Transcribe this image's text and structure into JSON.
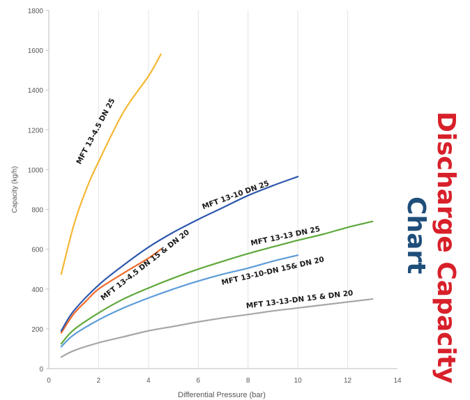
{
  "side_title": {
    "line1": "Discharge Capacity",
    "line2": "Chart",
    "line1_color": "#d8202a",
    "line2_color": "#1f4e7a"
  },
  "chart_data": {
    "type": "line",
    "xlabel": "Differential Pressure (bar)",
    "ylabel": "Capacity (kg/h)",
    "xlim": [
      0,
      14
    ],
    "ylim": [
      0,
      1800
    ],
    "x_ticks": [
      "0",
      "2",
      "4",
      "6",
      "8",
      "10",
      "12",
      "14"
    ],
    "y_ticks": [
      "0",
      "200",
      "400",
      "600",
      "800",
      "1000",
      "1200",
      "1400",
      "1600",
      "1800"
    ],
    "grid": "vertical",
    "series": [
      {
        "name": "MFT 13-4.5 DN 25",
        "color": "#f5b731",
        "points": [
          [
            0.5,
            475
          ],
          [
            1,
            720
          ],
          [
            1.5,
            900
          ],
          [
            2,
            1040
          ],
          [
            3,
            1290
          ],
          [
            4,
            1470
          ],
          [
            4.5,
            1580
          ]
        ]
      },
      {
        "name": "MFT 13-4.5 DN 15 & DN 20",
        "color": "#ee6a27",
        "points": [
          [
            0.5,
            180
          ],
          [
            1,
            275
          ],
          [
            1.5,
            340
          ],
          [
            2,
            400
          ],
          [
            3,
            480
          ],
          [
            4,
            555
          ],
          [
            4.5,
            600
          ]
        ]
      },
      {
        "name": "MFT 13-10 DN 25",
        "color": "#2e58ad",
        "points": [
          [
            0.5,
            190
          ],
          [
            1,
            290
          ],
          [
            2,
            420
          ],
          [
            3,
            520
          ],
          [
            4,
            610
          ],
          [
            5,
            685
          ],
          [
            6,
            750
          ],
          [
            7,
            810
          ],
          [
            8,
            870
          ],
          [
            9,
            920
          ],
          [
            10,
            965
          ]
        ]
      },
      {
        "name": "MFT 13-13 DN 25",
        "color": "#5ea83b",
        "points": [
          [
            0.5,
            125
          ],
          [
            1,
            195
          ],
          [
            2,
            280
          ],
          [
            3,
            350
          ],
          [
            4,
            405
          ],
          [
            5,
            455
          ],
          [
            6,
            500
          ],
          [
            7,
            540
          ],
          [
            8,
            578
          ],
          [
            9,
            612
          ],
          [
            10,
            645
          ],
          [
            11,
            675
          ],
          [
            12,
            710
          ],
          [
            13,
            740
          ]
        ]
      },
      {
        "name": "MFT 13-10-DN 15& DN 20",
        "color": "#5b9bd8",
        "points": [
          [
            0.5,
            110
          ],
          [
            1,
            170
          ],
          [
            2,
            245
          ],
          [
            3,
            305
          ],
          [
            4,
            355
          ],
          [
            5,
            400
          ],
          [
            6,
            440
          ],
          [
            7,
            475
          ],
          [
            8,
            505
          ],
          [
            9,
            540
          ],
          [
            10,
            570
          ]
        ]
      },
      {
        "name": "MFT 13-13-DN 15 & DN 20",
        "color": "#a6a6a6",
        "points": [
          [
            0.5,
            58
          ],
          [
            1,
            90
          ],
          [
            2,
            130
          ],
          [
            3,
            160
          ],
          [
            4,
            190
          ],
          [
            5,
            212
          ],
          [
            6,
            235
          ],
          [
            7,
            255
          ],
          [
            8,
            272
          ],
          [
            9,
            290
          ],
          [
            10,
            305
          ],
          [
            11,
            320
          ],
          [
            12,
            335
          ],
          [
            13,
            350
          ]
        ]
      }
    ],
    "annotations": [
      {
        "text": "MFT 13-4.5 DN 25",
        "series": 0
      },
      {
        "text": "MFT 13-10 DN 25",
        "series": 2
      },
      {
        "text": "MFT 13-4.5 DN 15 & DN 20",
        "series": 1
      },
      {
        "text": "MFT 13-13 DN 25",
        "series": 3
      },
      {
        "text": "MFT 13-10-DN 15& DN 20",
        "series": 4
      },
      {
        "text": "MFT 13-13-DN 15 & DN 20",
        "series": 5
      }
    ]
  }
}
